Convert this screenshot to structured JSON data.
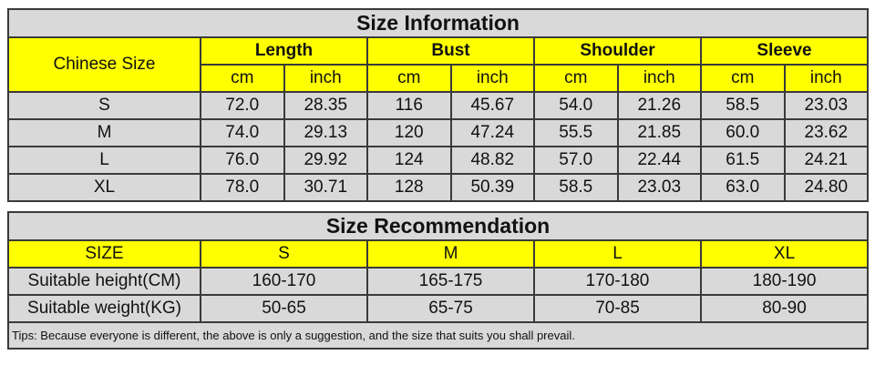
{
  "size_information": {
    "title": "Size Information",
    "first_header": "Chinese Size",
    "groups": [
      "Length",
      "Bust",
      "Shoulder",
      "Sleeve"
    ],
    "units": [
      "cm",
      "inch"
    ],
    "rows": [
      {
        "size": "S",
        "values": [
          "72.0",
          "28.35",
          "116",
          "45.67",
          "54.0",
          "21.26",
          "58.5",
          "23.03"
        ]
      },
      {
        "size": "M",
        "values": [
          "74.0",
          "29.13",
          "120",
          "47.24",
          "55.5",
          "21.85",
          "60.0",
          "23.62"
        ]
      },
      {
        "size": "L",
        "values": [
          "76.0",
          "29.92",
          "124",
          "48.82",
          "57.0",
          "22.44",
          "61.5",
          "24.21"
        ]
      },
      {
        "size": "XL",
        "values": [
          "78.0",
          "30.71",
          "128",
          "50.39",
          "58.5",
          "23.03",
          "63.0",
          "24.80"
        ]
      }
    ]
  },
  "size_recommendation": {
    "title": "Size Recommendation",
    "header": [
      "SIZE",
      "S",
      "M",
      "L",
      "XL"
    ],
    "rows": [
      {
        "label": "Suitable height(CM)",
        "values": [
          "160-170",
          "165-175",
          "170-180",
          "180-190"
        ]
      },
      {
        "label": "Suitable weight(KG)",
        "values": [
          "50-65",
          "65-75",
          "70-85",
          "80-90"
        ]
      }
    ],
    "tips": "Tips: Because everyone is different, the above is only a suggestion, and the size that suits you shall prevail."
  },
  "colors": {
    "header_yellow": "#ffff00",
    "cell_gray": "#d9d9d9",
    "border": "#3a3a3a"
  }
}
